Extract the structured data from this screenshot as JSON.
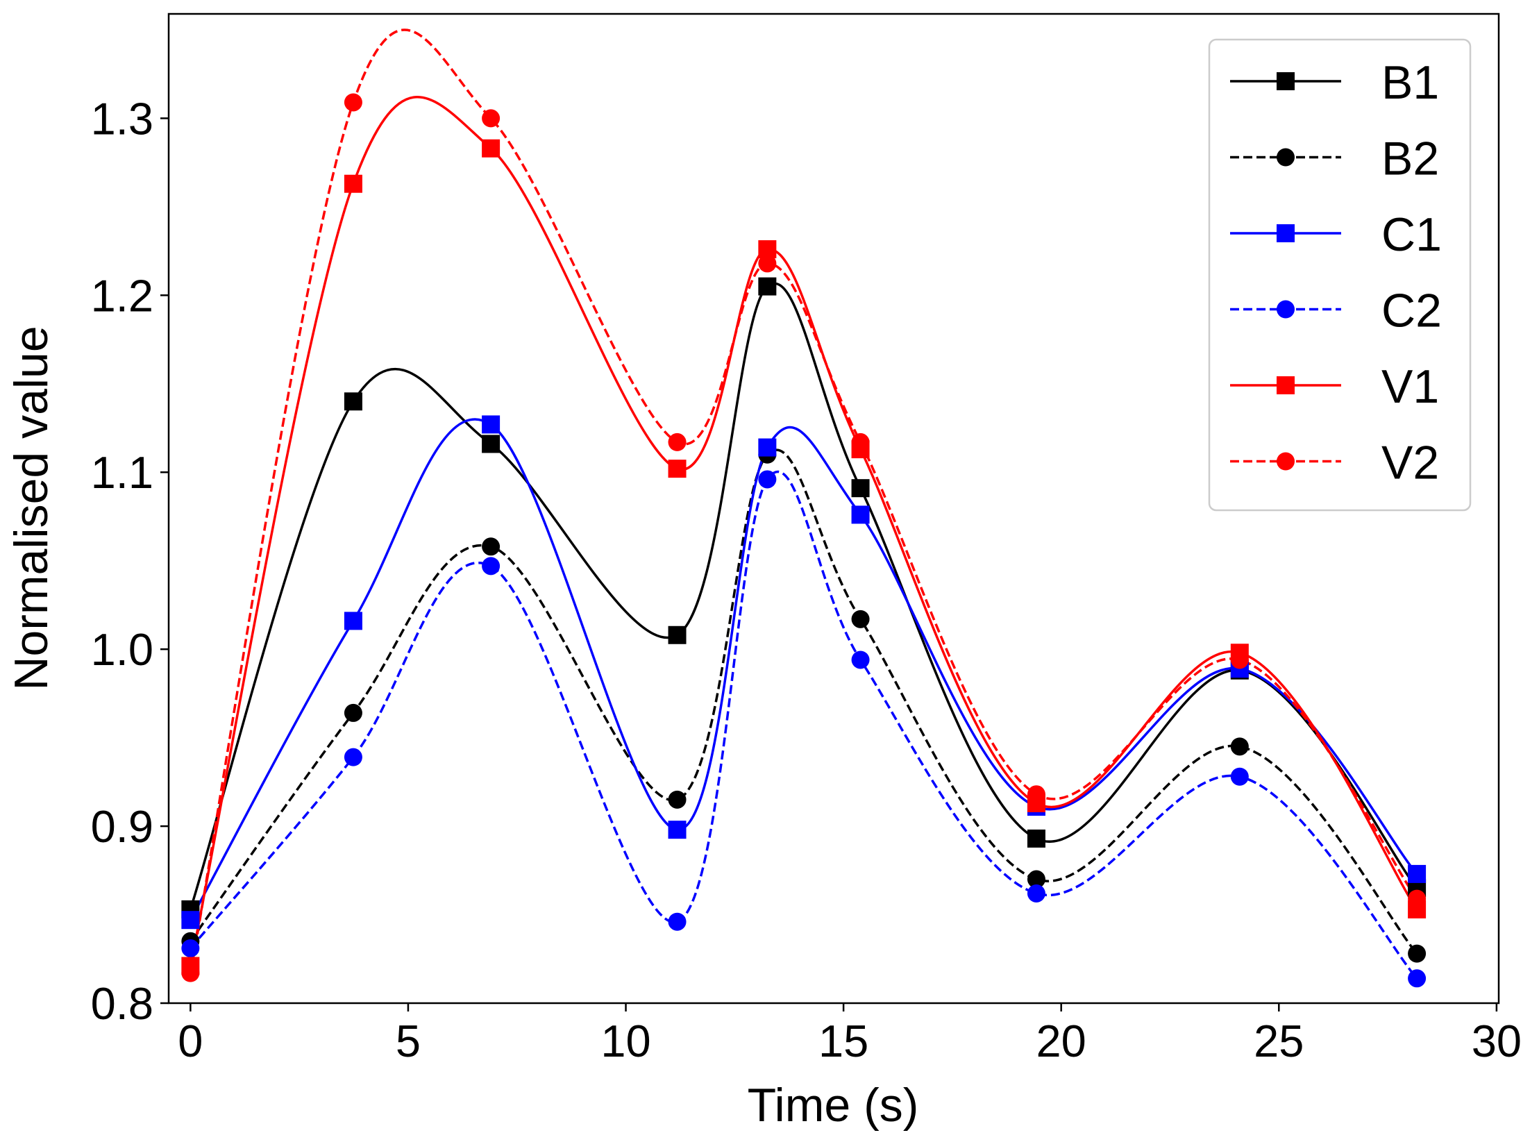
{
  "chart_data": {
    "type": "line",
    "title": "",
    "xlabel": "Time (s)",
    "ylabel": "Normalised value",
    "xlim": [
      -0.5,
      30.05
    ],
    "ylim": [
      0.8,
      1.359
    ],
    "xticks": [
      0,
      5,
      10,
      15,
      20,
      25,
      30
    ],
    "xtick_labels": [
      "0",
      "5",
      "10",
      "15",
      "20",
      "25",
      "30"
    ],
    "yticks": [
      0.8,
      0.9,
      1.0,
      1.1,
      1.2,
      1.3
    ],
    "ytick_labels": [
      "0.8",
      "0.9",
      "1.0",
      "1.1",
      "1.2",
      "1.3"
    ],
    "grid": false,
    "legend_position": "top-right",
    "x": [
      0,
      3.74,
      6.9,
      11.18,
      13.25,
      15.39,
      19.43,
      24.1,
      28.17
    ],
    "series": [
      {
        "name": "B1",
        "color": "#000000",
        "dash": "solid",
        "marker": "square",
        "values": [
          0.853,
          1.14,
          1.116,
          1.008,
          1.205,
          1.091,
          0.893,
          0.988,
          0.865
        ]
      },
      {
        "name": "B2",
        "color": "#000000",
        "dash": "dashed",
        "marker": "circle",
        "values": [
          0.835,
          0.964,
          1.058,
          0.915,
          1.11,
          1.017,
          0.87,
          0.945,
          0.828
        ]
      },
      {
        "name": "C1",
        "color": "#0000ff",
        "dash": "solid",
        "marker": "square",
        "values": [
          0.847,
          1.016,
          1.127,
          0.898,
          1.114,
          1.076,
          0.911,
          0.989,
          0.873
        ]
      },
      {
        "name": "C2",
        "color": "#0000ff",
        "dash": "dashed",
        "marker": "circle",
        "values": [
          0.831,
          0.939,
          1.047,
          0.846,
          1.096,
          0.994,
          0.862,
          0.928,
          0.814
        ]
      },
      {
        "name": "V1",
        "color": "#ff0000",
        "dash": "solid",
        "marker": "square",
        "values": [
          0.821,
          1.263,
          1.283,
          1.102,
          1.226,
          1.113,
          0.913,
          0.998,
          0.853
        ]
      },
      {
        "name": "V2",
        "color": "#ff0000",
        "dash": "dashed",
        "marker": "circle",
        "values": [
          0.817,
          1.309,
          1.3,
          1.117,
          1.218,
          1.117,
          0.918,
          0.994,
          0.859
        ]
      }
    ]
  }
}
